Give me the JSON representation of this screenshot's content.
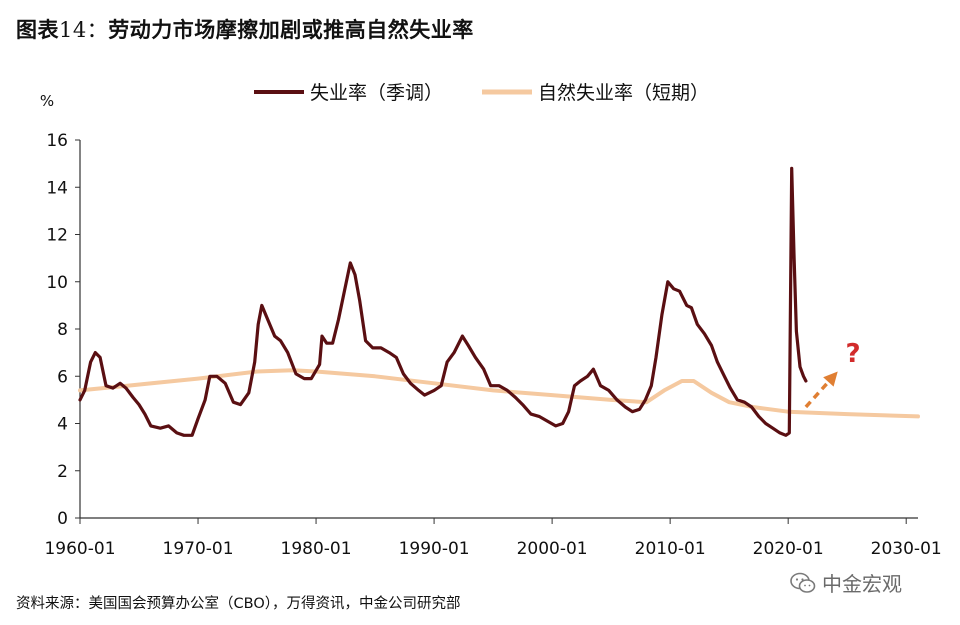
{
  "figure": {
    "label": "图表",
    "number": "14：",
    "heading": "劳动力市场摩擦加剧或推高自然失业率"
  },
  "source": "资料来源：美国国会预算办公室（CBO），万得资讯，中金公司研究部",
  "watermark": "中金宏观",
  "colors": {
    "unemployment": "#5a0f12",
    "natural_rate": "#f5c9a0",
    "arrow": "#e07f33",
    "question": "#d22b2b"
  },
  "chart_data": {
    "type": "line",
    "title": "",
    "ylabel": "%",
    "xlabel": "",
    "xlim": [
      1960.0,
      2031.0
    ],
    "ylim": [
      0,
      16
    ],
    "yticks": [
      0,
      2,
      4,
      6,
      8,
      10,
      12,
      14,
      16
    ],
    "xtick_values": [
      1960,
      1970,
      1980,
      1990,
      2000,
      2010,
      2020,
      2030
    ],
    "xtick_labels": [
      "1960-01",
      "1970-01",
      "1980-01",
      "1990-01",
      "2000-01",
      "2010-01",
      "2020-01",
      "2030-01"
    ],
    "grid": false,
    "legend_position": "top-center",
    "annotation": "?",
    "series": [
      {
        "name": "失业率（季调）",
        "points": [
          [
            1960.0,
            5.0
          ],
          [
            1960.4,
            5.4
          ],
          [
            1960.9,
            6.6
          ],
          [
            1961.3,
            7.0
          ],
          [
            1961.7,
            6.8
          ],
          [
            1962.2,
            5.6
          ],
          [
            1962.8,
            5.5
          ],
          [
            1963.4,
            5.7
          ],
          [
            1963.9,
            5.5
          ],
          [
            1964.5,
            5.1
          ],
          [
            1965.0,
            4.8
          ],
          [
            1965.5,
            4.4
          ],
          [
            1966.0,
            3.9
          ],
          [
            1966.8,
            3.8
          ],
          [
            1967.5,
            3.9
          ],
          [
            1968.2,
            3.6
          ],
          [
            1968.8,
            3.5
          ],
          [
            1969.5,
            3.5
          ],
          [
            1970.0,
            4.2
          ],
          [
            1970.6,
            5.0
          ],
          [
            1971.0,
            6.0
          ],
          [
            1971.6,
            6.0
          ],
          [
            1972.3,
            5.7
          ],
          [
            1973.0,
            4.9
          ],
          [
            1973.6,
            4.8
          ],
          [
            1974.3,
            5.3
          ],
          [
            1974.8,
            6.6
          ],
          [
            1975.1,
            8.2
          ],
          [
            1975.4,
            9.0
          ],
          [
            1975.9,
            8.4
          ],
          [
            1976.5,
            7.7
          ],
          [
            1977.0,
            7.5
          ],
          [
            1977.6,
            7.0
          ],
          [
            1978.3,
            6.1
          ],
          [
            1979.0,
            5.9
          ],
          [
            1979.6,
            5.9
          ],
          [
            1980.3,
            6.5
          ],
          [
            1980.5,
            7.7
          ],
          [
            1980.9,
            7.4
          ],
          [
            1981.4,
            7.4
          ],
          [
            1981.9,
            8.4
          ],
          [
            1982.4,
            9.6
          ],
          [
            1982.9,
            10.8
          ],
          [
            1983.3,
            10.3
          ],
          [
            1983.7,
            9.2
          ],
          [
            1984.2,
            7.5
          ],
          [
            1984.8,
            7.2
          ],
          [
            1985.5,
            7.2
          ],
          [
            1986.2,
            7.0
          ],
          [
            1986.8,
            6.8
          ],
          [
            1987.4,
            6.1
          ],
          [
            1988.0,
            5.7
          ],
          [
            1988.7,
            5.4
          ],
          [
            1989.2,
            5.2
          ],
          [
            1990.0,
            5.4
          ],
          [
            1990.6,
            5.6
          ],
          [
            1991.1,
            6.6
          ],
          [
            1991.7,
            7.0
          ],
          [
            1992.4,
            7.7
          ],
          [
            1992.9,
            7.3
          ],
          [
            1993.5,
            6.8
          ],
          [
            1994.2,
            6.3
          ],
          [
            1994.8,
            5.6
          ],
          [
            1995.5,
            5.6
          ],
          [
            1996.2,
            5.4
          ],
          [
            1996.9,
            5.1
          ],
          [
            1997.5,
            4.8
          ],
          [
            1998.2,
            4.4
          ],
          [
            1998.9,
            4.3
          ],
          [
            1999.6,
            4.1
          ],
          [
            2000.3,
            3.9
          ],
          [
            2000.9,
            4.0
          ],
          [
            2001.4,
            4.5
          ],
          [
            2001.9,
            5.6
          ],
          [
            2002.4,
            5.8
          ],
          [
            2003.0,
            6.0
          ],
          [
            2003.5,
            6.3
          ],
          [
            2004.1,
            5.6
          ],
          [
            2004.8,
            5.4
          ],
          [
            2005.5,
            5.0
          ],
          [
            2006.2,
            4.7
          ],
          [
            2006.8,
            4.5
          ],
          [
            2007.4,
            4.6
          ],
          [
            2007.9,
            5.0
          ],
          [
            2008.4,
            5.6
          ],
          [
            2008.8,
            6.8
          ],
          [
            2009.3,
            8.6
          ],
          [
            2009.8,
            10.0
          ],
          [
            2010.3,
            9.7
          ],
          [
            2010.8,
            9.6
          ],
          [
            2011.4,
            9.0
          ],
          [
            2011.8,
            8.9
          ],
          [
            2012.3,
            8.2
          ],
          [
            2012.9,
            7.8
          ],
          [
            2013.5,
            7.3
          ],
          [
            2014.0,
            6.6
          ],
          [
            2014.6,
            6.0
          ],
          [
            2015.1,
            5.5
          ],
          [
            2015.7,
            5.0
          ],
          [
            2016.3,
            4.9
          ],
          [
            2016.9,
            4.7
          ],
          [
            2017.5,
            4.3
          ],
          [
            2018.1,
            4.0
          ],
          [
            2018.7,
            3.8
          ],
          [
            2019.3,
            3.6
          ],
          [
            2019.8,
            3.5
          ],
          [
            2020.1,
            3.6
          ],
          [
            2020.3,
            14.8
          ],
          [
            2020.5,
            11.0
          ],
          [
            2020.7,
            7.9
          ],
          [
            2021.0,
            6.4
          ],
          [
            2021.3,
            6.0
          ],
          [
            2021.5,
            5.8
          ]
        ]
      },
      {
        "name": "自然失业率（短期）",
        "points": [
          [
            1960.0,
            5.4
          ],
          [
            1964.0,
            5.6
          ],
          [
            1970.0,
            5.9
          ],
          [
            1975.0,
            6.2
          ],
          [
            1978.0,
            6.25
          ],
          [
            1980.0,
            6.2
          ],
          [
            1985.0,
            6.0
          ],
          [
            1990.0,
            5.7
          ],
          [
            1995.0,
            5.4
          ],
          [
            2000.0,
            5.2
          ],
          [
            2005.0,
            5.0
          ],
          [
            2008.0,
            4.9
          ],
          [
            2009.5,
            5.4
          ],
          [
            2011.0,
            5.8
          ],
          [
            2012.0,
            5.8
          ],
          [
            2013.5,
            5.3
          ],
          [
            2015.0,
            4.9
          ],
          [
            2017.0,
            4.7
          ],
          [
            2020.0,
            4.5
          ],
          [
            2025.0,
            4.4
          ],
          [
            2031.0,
            4.3
          ]
        ]
      }
    ],
    "trend_arrow": {
      "from": [
        2021.5,
        4.7
      ],
      "to": [
        2024.2,
        6.2
      ]
    }
  }
}
